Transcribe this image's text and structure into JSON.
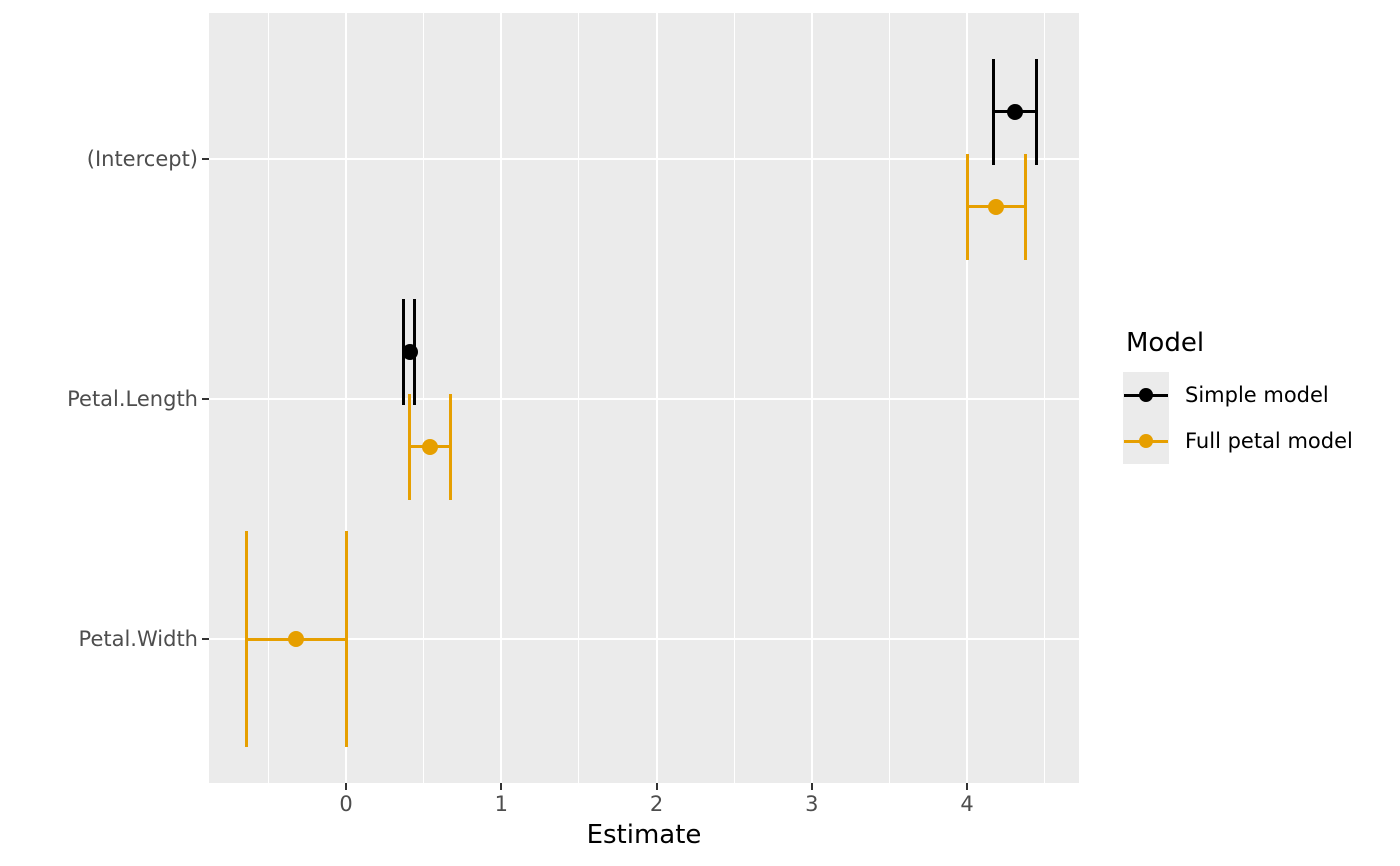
{
  "figure": {
    "background_color": "#FFFFFF",
    "panel_background_color": "#EBEBEB",
    "gridline_color": "#FFFFFF",
    "axis_text_color": "#4D4D4D",
    "tick_mark_color": "#333333"
  },
  "x_axis": {
    "title": "Estimate",
    "tick_labels": [
      "0",
      "1",
      "2",
      "3",
      "4"
    ],
    "tick_values": [
      0,
      1,
      2,
      3,
      4
    ],
    "minor_tick_values": [
      -0.5,
      0.5,
      1.5,
      2.5,
      3.5,
      4.5
    ]
  },
  "y_axis": {
    "categories": [
      "(Intercept)",
      "Petal.Length",
      "Petal.Width"
    ]
  },
  "legend": {
    "title": "Model",
    "items": [
      {
        "label": "Simple model",
        "color": "#000000"
      },
      {
        "label": "Full petal model",
        "color": "#E69F00"
      }
    ]
  },
  "chart_data": {
    "type": "scatter",
    "subtype": "dot-whisker coefficient plot with confidence-interval error bars",
    "title": "",
    "xlabel": "Estimate",
    "ylabel": "",
    "legend_title": "Model",
    "legend_position": "right",
    "grid": "on",
    "xlim": [
      -0.88,
      4.72
    ],
    "terms": [
      "(Intercept)",
      "Petal.Length",
      "Petal.Width"
    ],
    "series": [
      {
        "name": "Simple model",
        "color": "#000000",
        "estimates": [
          {
            "term": "(Intercept)",
            "estimate": 4.31,
            "conf_low": 4.17,
            "conf_high": 4.45
          },
          {
            "term": "Petal.Length",
            "estimate": 0.41,
            "conf_low": 0.37,
            "conf_high": 0.44
          }
        ]
      },
      {
        "name": "Full petal model",
        "color": "#E69F00",
        "estimates": [
          {
            "term": "(Intercept)",
            "estimate": 4.19,
            "conf_low": 4.0,
            "conf_high": 4.38
          },
          {
            "term": "Petal.Length",
            "estimate": 0.54,
            "conf_low": 0.41,
            "conf_high": 0.67
          },
          {
            "term": "Petal.Width",
            "estimate": -0.32,
            "conf_low": -0.64,
            "conf_high": 0.0
          }
        ]
      }
    ]
  }
}
